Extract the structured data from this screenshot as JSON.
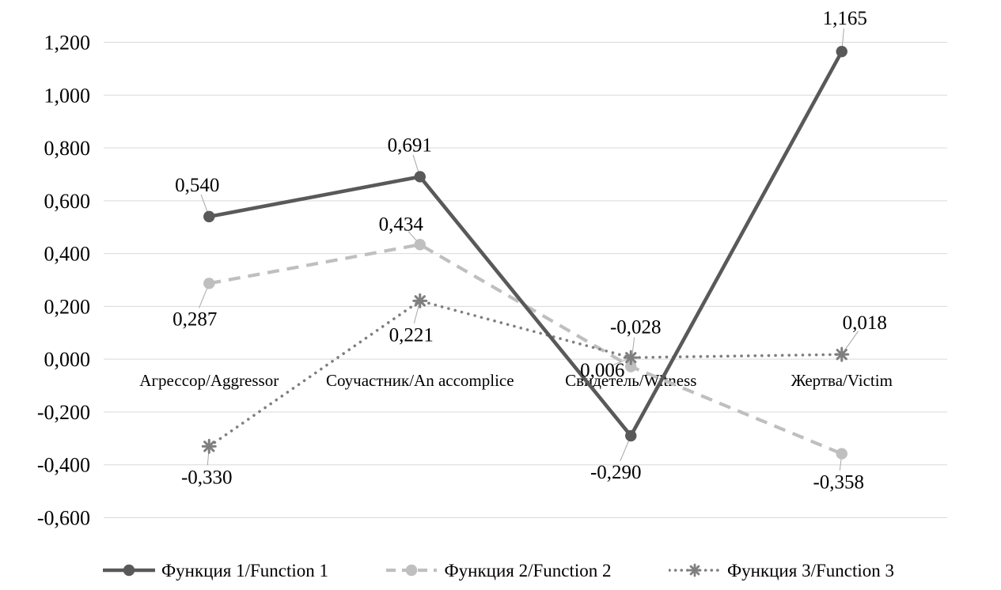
{
  "chart_data": {
    "type": "line",
    "title": "",
    "categories": [
      "Агрессор/Aggressor",
      "Соучастник/An accomplice",
      "Свидетель/Witness",
      "Жертва/Victim"
    ],
    "series": [
      {
        "name": "Функция 1/Function 1",
        "values": [
          0.54,
          0.691,
          -0.29,
          1.165
        ],
        "point_labels": [
          "0,540",
          "0,691",
          "-0,290",
          "1,165"
        ],
        "color": "#595959",
        "line_style": "solid",
        "marker": "circle"
      },
      {
        "name": "Функция 2/Function 2",
        "values": [
          0.287,
          0.434,
          -0.028,
          -0.358
        ],
        "point_labels": [
          "0,287",
          "0,434",
          "-0,028",
          "-0,358"
        ],
        "color": "#bfbfbf",
        "line_style": "dashed",
        "marker": "circle"
      },
      {
        "name": "Функция 3/Function 3",
        "values": [
          -0.33,
          0.221,
          0.006,
          0.018
        ],
        "point_labels": [
          "-0,330",
          "0,221",
          "0,006",
          "0,018"
        ],
        "color": "#7f7f7f",
        "line_style": "dotted",
        "marker": "star"
      }
    ],
    "y_axis": {
      "min": -0.6,
      "max": 1.2,
      "step": 0.2,
      "tick_labels": [
        "1,200",
        "1,000",
        "0,800",
        "0,600",
        "0,400",
        "0,200",
        "0,000",
        "-0,200",
        "-0,400",
        "-0,600"
      ]
    },
    "decimal_separator": ",",
    "grid": true,
    "legend_position": "bottom",
    "colors": {
      "gridline": "#d9d9d9",
      "leader_line": "#a6a6a6",
      "tick_text": "#000000",
      "data_label_text": "#000000"
    },
    "label_offsets": [
      [
        [
          -15,
          -41
        ],
        [
          -13,
          -41
        ],
        [
          -19,
          45
        ],
        [
          4,
          -43
        ]
      ],
      [
        [
          -18,
          44
        ],
        [
          -24,
          -27
        ],
        [
          6,
          -51
        ],
        [
          -4,
          35
        ]
      ],
      [
        [
          -3,
          38
        ],
        [
          -11,
          42
        ],
        [
          -36,
          15
        ],
        [
          29,
          -41
        ]
      ]
    ]
  }
}
